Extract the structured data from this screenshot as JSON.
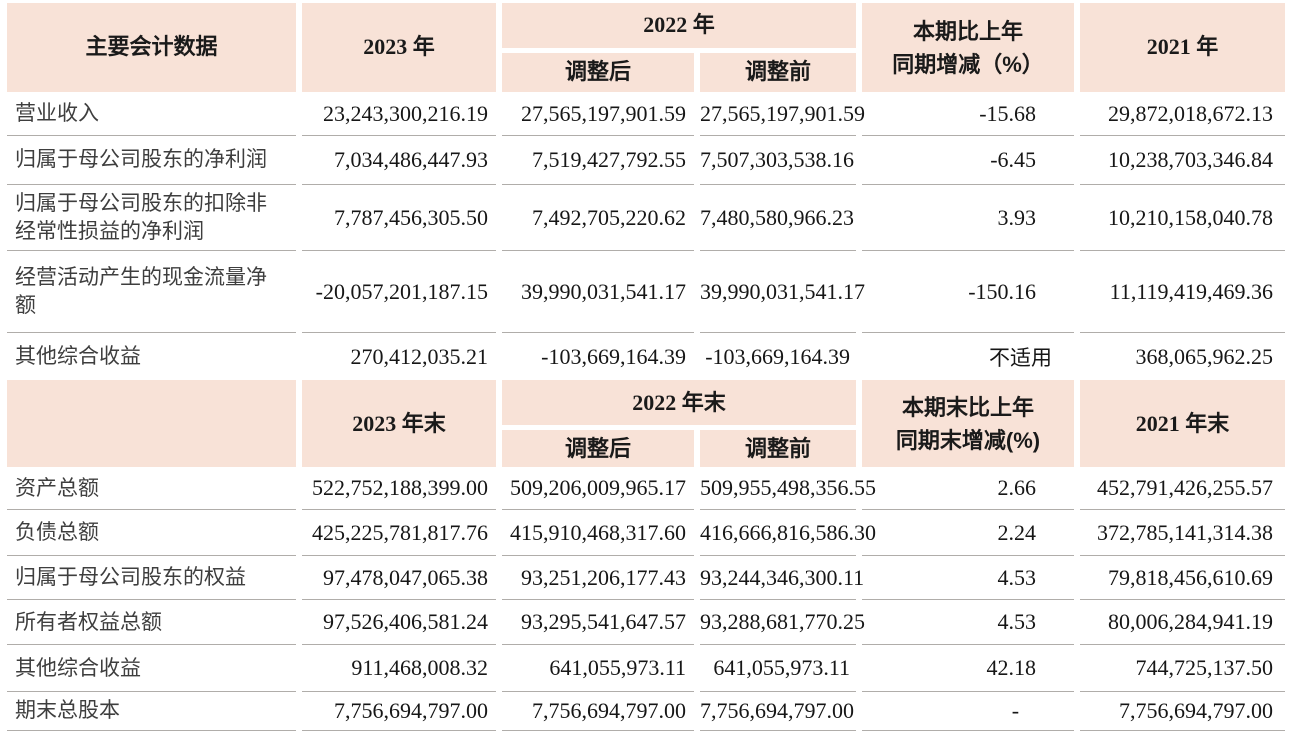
{
  "colors": {
    "header_bg": "#f8e2d7",
    "rule": "#b0adaa",
    "label_text": "#3e3e3e",
    "number_text": "#161616",
    "header_text": "#1a1a1a"
  },
  "table": {
    "section1": {
      "header": {
        "metric": "主要会计数据",
        "y2023": "2023 年",
        "y2022": "2022 年",
        "adjusted_after": "调整后",
        "adjusted_before": "调整前",
        "change_line1": "本期比上年",
        "change_line2": "同期增减（%）",
        "y2021": "2021 年"
      },
      "rows": [
        [
          "营业收入",
          "23,243,300,216.19",
          "27,565,197,901.59",
          "27,565,197,901.59",
          "-15.68",
          "29,872,018,672.13"
        ],
        [
          "归属于母公司股东的净利润",
          "7,034,486,447.93",
          "7,519,427,792.55",
          "7,507,303,538.16",
          "-6.45",
          "10,238,703,346.84"
        ],
        [
          "归属于母公司股东的扣除非经常性损益的净利润",
          "7,787,456,305.50",
          "7,492,705,220.62",
          "7,480,580,966.23",
          "3.93",
          "10,210,158,040.78"
        ],
        [
          "经营活动产生的现金流量净额",
          "-20,057,201,187.15",
          "39,990,031,541.17",
          "39,990,031,541.17",
          "-150.16",
          "11,119,419,469.36"
        ],
        [
          "其他综合收益",
          "270,412,035.21",
          "-103,669,164.39",
          "-103,669,164.39",
          "不适用",
          "368,065,962.25"
        ]
      ]
    },
    "section2": {
      "header": {
        "y2023": "2023 年末",
        "y2022": "2022 年末",
        "adjusted_after": "调整后",
        "adjusted_before": "调整前",
        "change_line1": "本期末比上年",
        "change_line2": "同期末增减(%)",
        "y2021": "2021 年末"
      },
      "rows": [
        [
          "资产总额",
          "522,752,188,399.00",
          "509,206,009,965.17",
          "509,955,498,356.55",
          "2.66",
          "452,791,426,255.57"
        ],
        [
          "负债总额",
          "425,225,781,817.76",
          "415,910,468,317.60",
          "416,666,816,586.30",
          "2.24",
          "372,785,141,314.38"
        ],
        [
          "归属于母公司股东的权益",
          "97,478,047,065.38",
          "93,251,206,177.43",
          "93,244,346,300.11",
          "4.53",
          "79,818,456,610.69"
        ],
        [
          "所有者权益总额",
          "97,526,406,581.24",
          "93,295,541,647.57",
          "93,288,681,770.25",
          "4.53",
          "80,006,284,941.19"
        ],
        [
          "其他综合收益",
          "911,468,008.32",
          "641,055,973.11",
          "641,055,973.11",
          "42.18",
          "744,725,137.50"
        ],
        [
          "期末总股本",
          "7,756,694,797.00",
          "7,756,694,797.00",
          "7,756,694,797.00",
          "-",
          "7,756,694,797.00"
        ]
      ]
    }
  }
}
